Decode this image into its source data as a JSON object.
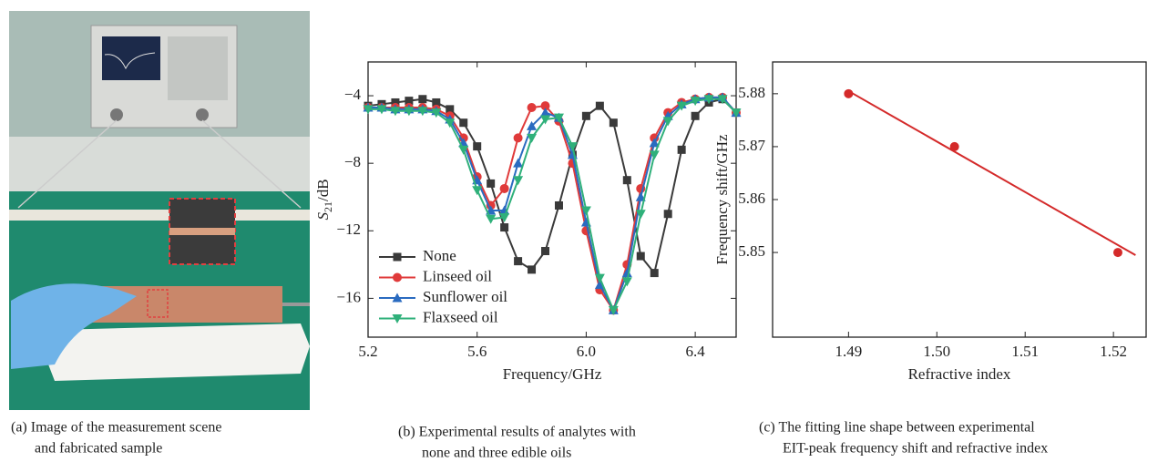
{
  "chart_data": [
    {
      "type": "line",
      "xlabel": "Frequency/GHz",
      "ylabel": [
        "S",
        "21",
        "/dB"
      ],
      "xlim": [
        5.2,
        6.55
      ],
      "ylim": [
        -18.3,
        -2
      ],
      "xticks": [
        5.2,
        5.6,
        {
          "value": 6,
          "label": "6.0"
        },
        6.4
      ],
      "yticks": [
        {
          "value": -4,
          "label": "−4"
        },
        {
          "value": -8,
          "label": "−8"
        },
        {
          "value": -12,
          "label": "−12"
        },
        {
          "value": -16,
          "label": "−16"
        }
      ],
      "legend": "lower left",
      "x": [
        5.2,
        5.25,
        5.3,
        5.35,
        5.4,
        5.45,
        5.5,
        5.55,
        5.6,
        5.65,
        5.7,
        5.75,
        5.8,
        5.85,
        5.9,
        5.95,
        6.0,
        6.05,
        6.1,
        6.15,
        6.2,
        6.25,
        6.3,
        6.35,
        6.4,
        6.45,
        6.5,
        6.55
      ],
      "series": [
        {
          "name": "None",
          "color": "#3a3a3a",
          "marker": "square",
          "values": [
            -4.6,
            -4.5,
            -4.4,
            -4.3,
            -4.2,
            -4.4,
            -4.8,
            -5.6,
            -7.0,
            -9.2,
            -11.8,
            -13.8,
            -14.3,
            -13.2,
            -10.5,
            -7.5,
            -5.2,
            -4.6,
            -5.6,
            -9.0,
            -13.5,
            -14.5,
            -11.0,
            -7.2,
            -5.2,
            -4.4,
            -4.2,
            -5.0
          ]
        },
        {
          "name": "Linseed oil",
          "color": "#e03a3a",
          "marker": "circle",
          "values": [
            -4.7,
            -4.7,
            -4.7,
            -4.7,
            -4.7,
            -4.8,
            -5.2,
            -6.5,
            -8.8,
            -10.5,
            -9.5,
            -6.5,
            -4.7,
            -4.6,
            -5.5,
            -8.0,
            -12.0,
            -15.5,
            -16.7,
            -14.0,
            -9.5,
            -6.5,
            -5.0,
            -4.4,
            -4.2,
            -4.1,
            -4.1,
            -5.0
          ]
        },
        {
          "name": "Sunflower oil",
          "color": "#2a6bc0",
          "marker": "triangle-up",
          "values": [
            -4.7,
            -4.7,
            -4.8,
            -4.8,
            -4.8,
            -4.9,
            -5.4,
            -6.8,
            -9.0,
            -10.8,
            -10.8,
            -8.0,
            -5.8,
            -5.0,
            -5.3,
            -7.5,
            -11.5,
            -15.2,
            -16.7,
            -14.5,
            -10.0,
            -6.8,
            -5.2,
            -4.5,
            -4.2,
            -4.1,
            -4.1,
            -5.0
          ]
        },
        {
          "name": "Flaxseed oil",
          "color": "#2fb07a",
          "marker": "triangle-down",
          "values": [
            -4.8,
            -4.8,
            -4.9,
            -4.9,
            -4.9,
            -5.0,
            -5.6,
            -7.2,
            -9.6,
            -11.3,
            -11.2,
            -9.0,
            -6.5,
            -5.4,
            -5.3,
            -7.0,
            -10.8,
            -14.8,
            -16.7,
            -15.0,
            -11.0,
            -7.5,
            -5.5,
            -4.6,
            -4.3,
            -4.2,
            -4.2,
            -5.0
          ]
        }
      ]
    },
    {
      "type": "scatter",
      "xlabel": "Refractive index",
      "ylabel": [
        "Frequency shift/GHz"
      ],
      "xlim": [
        1.4814,
        1.5237
      ],
      "ylim": [
        5.834,
        5.886
      ],
      "xticks": [
        1.49,
        {
          "value": 1.5,
          "label": "1.50"
        },
        1.51,
        1.52
      ],
      "yticks": [
        5.88,
        5.87,
        5.86,
        5.85
      ],
      "series": [
        {
          "color": "#d42a2a",
          "marker": "circle",
          "x": [
            1.49,
            1.502,
            1.5205
          ],
          "values": [
            5.88,
            5.87,
            5.85
          ]
        },
        {
          "color": "#d42a2a",
          "marker": "none",
          "x": [
            1.49,
            1.5225
          ],
          "values": [
            5.8805,
            5.8495
          ]
        }
      ]
    }
  ],
  "captions": [
    [
      "(a) Image of the measurement scene",
      "and fabricated sample"
    ],
    [
      "(b) Experimental results of analytes with",
      "none and three edible oils"
    ],
    [
      "(c) The fitting line shape between experimental",
      "EIT-peak frequency shift and refractive index"
    ]
  ]
}
